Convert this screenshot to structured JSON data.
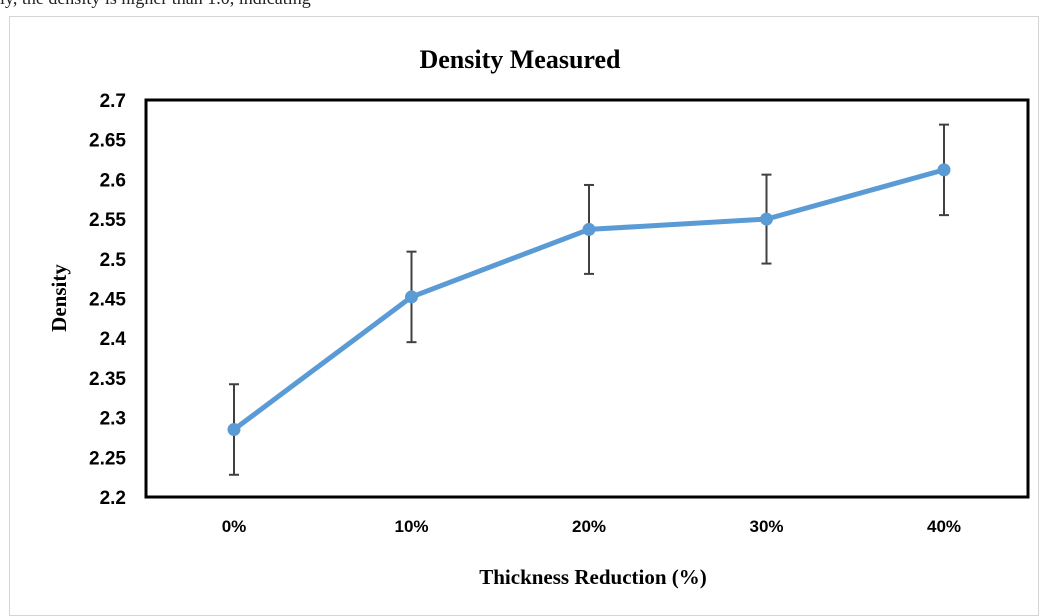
{
  "top_text": "ly, the density is higher than 1.0, indicating",
  "chart_data": {
    "type": "line",
    "title": "Density Measured",
    "xlabel": "Thickness Reduction (%)",
    "ylabel": "Density",
    "categories": [
      "0%",
      "10%",
      "20%",
      "30%",
      "40%"
    ],
    "series": [
      {
        "values": [
          2.285,
          2.452,
          2.537,
          2.55,
          2.612
        ],
        "error": [
          0.057,
          0.057,
          0.056,
          0.056,
          0.057
        ],
        "color": "#5b9bd5"
      }
    ],
    "ylim": [
      2.2,
      2.7
    ],
    "yticks": [
      "2.2",
      "2.25",
      "2.3",
      "2.35",
      "2.4",
      "2.45",
      "2.5",
      "2.55",
      "2.6",
      "2.65",
      "2.7"
    ],
    "ytick_values": [
      2.2,
      2.25,
      2.3,
      2.35,
      2.4,
      2.45,
      2.5,
      2.55,
      2.6,
      2.65,
      2.7
    ],
    "grid": false,
    "error_bar_color": "#404040"
  }
}
